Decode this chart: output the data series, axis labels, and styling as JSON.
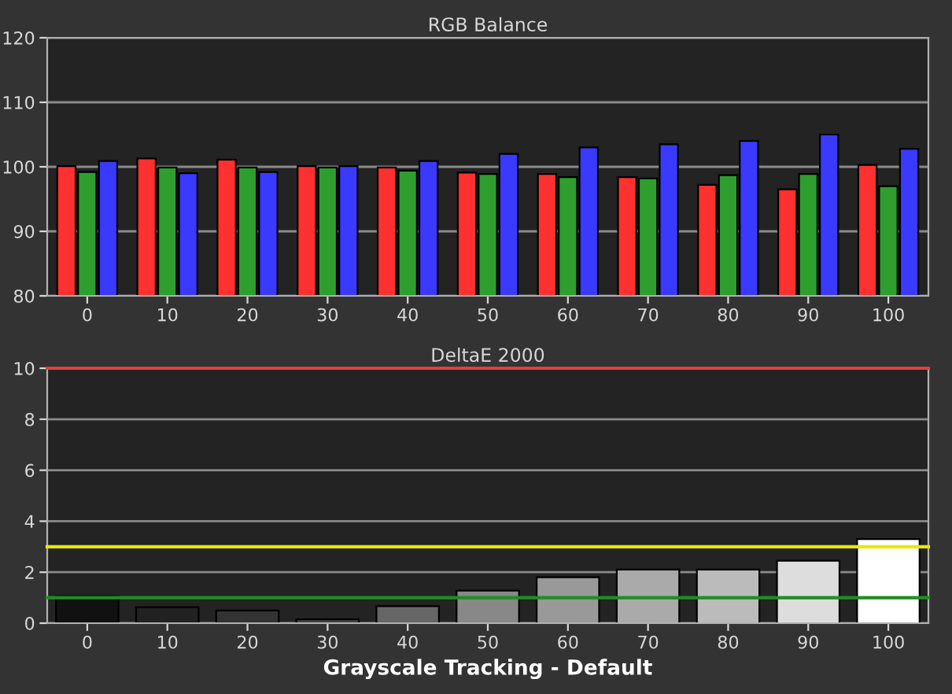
{
  "chart_data": [
    {
      "type": "bar",
      "title": "RGB Balance",
      "categories": [
        "0",
        "10",
        "20",
        "30",
        "40",
        "50",
        "60",
        "70",
        "80",
        "90",
        "100"
      ],
      "series": [
        {
          "color": "#ff3030",
          "values": [
            100.1,
            101.3,
            101.1,
            100.1,
            99.9,
            99.1,
            98.9,
            98.4,
            97.2,
            96.5,
            100.3
          ]
        },
        {
          "color": "#2e9e2e",
          "values": [
            99.2,
            99.9,
            99.9,
            99.9,
            99.4,
            98.9,
            98.4,
            98.2,
            98.7,
            98.9,
            97.0
          ]
        },
        {
          "color": "#3a3aff",
          "values": [
            100.9,
            99.0,
            99.2,
            100.1,
            100.9,
            102.0,
            103.0,
            103.5,
            104.0,
            105.0,
            102.8
          ]
        }
      ],
      "ylim": [
        80,
        120
      ],
      "yticks": [
        80,
        90,
        100,
        110,
        120
      ],
      "grid": "y"
    },
    {
      "type": "bar",
      "title": "DeltaE 2000",
      "categories": [
        "0",
        "10",
        "20",
        "30",
        "40",
        "50",
        "60",
        "70",
        "80",
        "90",
        "100"
      ],
      "values": [
        1.05,
        0.63,
        0.5,
        0.15,
        0.67,
        1.28,
        1.8,
        2.1,
        2.1,
        2.45,
        3.3
      ],
      "colors": [
        "#111111",
        "#222222",
        "#333333",
        "#444444",
        "#666666",
        "#888888",
        "#999999",
        "#aaaaaa",
        "#bbbbbb",
        "#dddddd",
        "#ffffff"
      ],
      "ylim": [
        0,
        10
      ],
      "yticks": [
        0,
        2,
        4,
        6,
        8,
        10
      ],
      "grid": "y",
      "ref_lines": [
        {
          "axis": "y",
          "value": 10,
          "color": "#e04040"
        },
        {
          "axis": "y",
          "value": 3,
          "color": "#e8e800"
        },
        {
          "axis": "y",
          "value": 1,
          "color": "#1f8f1f"
        }
      ],
      "annotations": [
        "Grayscale Tracking - Default"
      ]
    }
  ]
}
